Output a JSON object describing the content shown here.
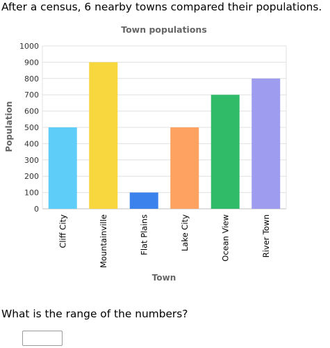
{
  "question": {
    "intro": "After a census, 6 nearby towns compared their populations.",
    "prompt": "What is the range of the numbers?",
    "answer_value": ""
  },
  "chart_data": {
    "type": "bar",
    "title": "Town populations",
    "xlabel": "Town",
    "ylabel": "Population",
    "ylim": [
      0,
      1000
    ],
    "yticks": [
      0,
      100,
      200,
      300,
      400,
      500,
      600,
      700,
      800,
      900,
      1000
    ],
    "grid": true,
    "categories": [
      "Cliff City",
      "Mountainville",
      "Flat Plains",
      "Lake City",
      "Ocean View",
      "River Town"
    ],
    "values": [
      500,
      900,
      100,
      500,
      700,
      800
    ],
    "colors": [
      "#5ecdf8",
      "#f8d63e",
      "#3b82ec",
      "#fda260",
      "#2fbb67",
      "#9d9cee"
    ]
  }
}
